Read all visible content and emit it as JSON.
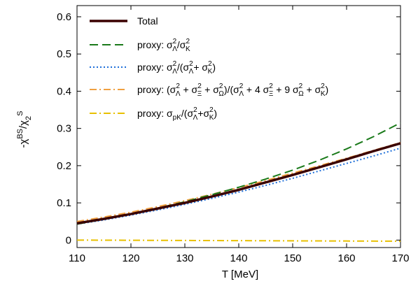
{
  "chart_data": {
    "type": "line",
    "xlabel": "T [MeV]",
    "ylabel_parts": [
      "-χ",
      "BS",
      "/χ",
      "2",
      "S"
    ],
    "xlim": [
      110,
      170
    ],
    "ylim": [
      -0.02,
      0.63
    ],
    "xticks": [
      110,
      120,
      130,
      140,
      150,
      160,
      170
    ],
    "yticks": [
      0,
      0.1,
      0.2,
      0.3,
      0.4,
      0.5,
      0.6
    ],
    "ytick_labels": [
      "0",
      "0.1",
      "0.2",
      "0.3",
      "0.4",
      "0.5",
      "0.6"
    ],
    "grid": false,
    "legend_position": "top-left",
    "series": [
      {
        "name": "Total",
        "color": "#3a0000",
        "dash": "solid",
        "x": [
          110,
          115,
          120,
          125,
          130,
          135,
          140,
          145,
          150,
          155,
          160,
          165,
          170
        ],
        "y": [
          0.045,
          0.057,
          0.07,
          0.085,
          0.1,
          0.117,
          0.135,
          0.155,
          0.175,
          0.196,
          0.217,
          0.239,
          0.26
        ]
      },
      {
        "name": "proxy: σ²Λ/σ²K",
        "color": "#1a7a1a",
        "dash": "long-dash",
        "x": [
          110,
          115,
          120,
          125,
          130,
          135,
          140,
          145,
          150,
          155,
          160,
          165,
          170
        ],
        "y": [
          0.043,
          0.056,
          0.07,
          0.086,
          0.103,
          0.122,
          0.142,
          0.164,
          0.188,
          0.215,
          0.245,
          0.278,
          0.315
        ]
      },
      {
        "name": "proxy: σ²Λ/(σ²Λ+ σ²K)",
        "color": "#1e6fd9",
        "dash": "dotted",
        "x": [
          110,
          115,
          120,
          125,
          130,
          135,
          140,
          145,
          150,
          155,
          160,
          165,
          170
        ],
        "y": [
          0.043,
          0.054,
          0.067,
          0.081,
          0.096,
          0.112,
          0.129,
          0.147,
          0.166,
          0.186,
          0.206,
          0.226,
          0.247
        ]
      },
      {
        "name": "proxy: (σ²Λ + σ²Ξ + σ²Ω)/(σ²Λ + 4 σ²Ξ + 9 σ²Ω + σ²K)",
        "color": "#f0a040",
        "dash": "dash-dot",
        "x": [
          110,
          115,
          120,
          125,
          130,
          135,
          140,
          145,
          150,
          155,
          160,
          165,
          170
        ],
        "y": [
          0.05,
          0.062,
          0.075,
          0.09,
          0.106,
          0.123,
          0.141,
          0.16,
          0.18,
          0.2,
          0.22,
          0.241,
          0.262
        ]
      },
      {
        "name": "proxy: σpK/(σ²Λ+σ²K)",
        "color": "#e8c000",
        "dash": "dash-dot",
        "x": [
          110,
          120,
          130,
          140,
          150,
          160,
          170
        ],
        "y": [
          0.0,
          -0.0005,
          -0.001,
          -0.0015,
          -0.002,
          -0.0025,
          -0.003
        ]
      }
    ]
  }
}
